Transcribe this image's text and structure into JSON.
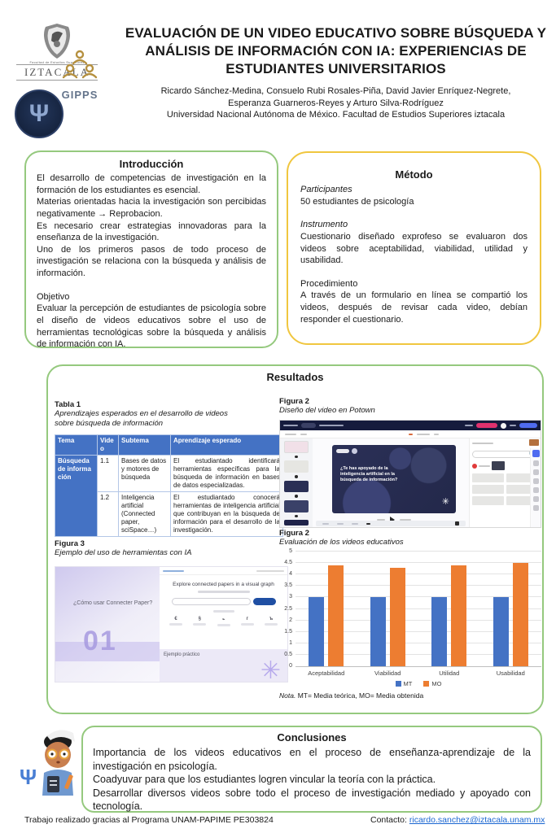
{
  "poster": {
    "title": "EVALUACIÓN DE UN VIDEO EDUCATIVO SOBRE BÚSQUEDA Y ANÁLISIS DE INFORMACIÓN CON IA: EXPERIENCIAS DE ESTUDIANTES UNIVERSITARIOS",
    "authors_line1": "Ricardo Sánchez-Medina, Consuelo Rubi Rosales-Piña, David Javier Enríquez-Negrete,",
    "authors_line2": "Esperanza Guarneros-Reyes y Arturo Silva-Rodríguez",
    "affiliation": "Universidad Nacional Autónoma de México. Facultad de Estudios Superiores iztacala",
    "logos": {
      "iztacala_sub": "Facultad de Estudios Superiores",
      "iztacala_name": "IZTACALA",
      "gipps_name": "GIPPS",
      "psi_symbol": "Ψ"
    }
  },
  "introduccion": {
    "title": "Introducción",
    "p1": "El desarrollo de competencias de investigación en la formación de los estudiantes es esencial.",
    "p2": "Materias orientadas hacia la investigación son percibidas negativamente → Reprobacion.",
    "p3": "Es necesario crear estrategias innovadoras para la enseñanza de la investigación.",
    "p4": "Uno de los primeros pasos de todo proceso de investigación se relaciona con la búsqueda y análisis de información.",
    "objetivo_label": "Objetivo",
    "objetivo_text": "Evaluar la percepción de estudiantes de psicología sobre el diseño de videos educativos sobre el uso de herramientas tecnológicas sobre la búsqueda y análisis de información con IA."
  },
  "metodo": {
    "title": "Método",
    "participantes_label": "Participantes",
    "participantes_text": "50 estudiantes de psicología",
    "instrumento_label": "Instrumento",
    "instrumento_text": "Cuestionario diseñado exprofeso se evaluaron dos videos sobre aceptabilidad, viabilidad, utilidad y usabilidad.",
    "procedimiento_label": "Procedimiento",
    "procedimiento_text": "A través de un formulario en línea se compartió los videos, después de revisar cada video, debían responder el cuestionario."
  },
  "resultados": {
    "title": "Resultados",
    "tabla1": {
      "label": "Tabla 1",
      "caption": "Aprendizajes esperados en el desarrollo de videos sobre búsqueda de información",
      "headers": [
        "Tema",
        "Video",
        "Subtema",
        "Aprendizaje esperado"
      ],
      "rows": [
        {
          "tema": "Búsqueda de información",
          "video": "1.1",
          "subtema": "Bases de datos y motores de búsqueda",
          "aprendizaje": "El estudiantado identificará herramientas específicas para la búsqueda de información en bases de datos especializadas."
        },
        {
          "tema": "",
          "video": "1.2",
          "subtema": "Inteligencia artificial (Connected paper, sciSpace…)",
          "aprendizaje": "El estudiantado conocerá herramientas de inteligencia artificial que contribuyan en la búsqueda de información para el desarrollo de la investigación."
        }
      ]
    },
    "figura2_video": {
      "label": "Figura 2",
      "caption": "Diseño del video en Potown",
      "slide_text": "¿Te has apoyado de la inteligencia artificial en la búsqueda de información?"
    },
    "figura3": {
      "label": "Figura 3",
      "caption": "Ejemplo del uso de herramientas con IA",
      "slide_title": "¿Cómo usar Connecter Paper?",
      "slide_number": "01",
      "page_title": "Explore connected papers in a visual graph",
      "example_label": "Ejemplo práctico",
      "asterisk": "✳"
    },
    "figura2_chart": {
      "label": "Figura 2",
      "caption": "Evaluación de los videos educativos",
      "nota_label": "Nota.",
      "nota_text": " MT= Media teórica, MO= Media obtenida"
    }
  },
  "chart_data": {
    "type": "bar",
    "title": "Evaluación de los videos educativos",
    "categories": [
      "Aceptabilidad",
      "Viabilidad",
      "Utilidad",
      "Usabilidad"
    ],
    "series": [
      {
        "name": "MT",
        "color": "#4472c4",
        "values": [
          3,
          3,
          3,
          3
        ]
      },
      {
        "name": "MO",
        "color": "#ed7d31",
        "values": [
          4.4,
          4.3,
          4.4,
          4.5
        ]
      }
    ],
    "xlabel": "",
    "ylabel": "",
    "ylim": [
      0,
      5
    ],
    "ytick_step": 0.5,
    "grid": true,
    "legend_position": "bottom"
  },
  "conclusiones": {
    "title": "Conclusiones",
    "p1": "Importancia de los videos educativos en el proceso de enseñanza-aprendizaje de la investigación en psicología.",
    "p2": "Coadyuvar para que los estudiantes logren vincular la teoría con la práctica.",
    "p3": "Desarrollar diversos videos sobre todo el proceso de investigación mediado y apoyado con tecnología."
  },
  "footer": {
    "acknowledgment": "Trabajo realizado gracias al Programa UNAM-PAPIME PE303824",
    "contact_label": "Contacto: ",
    "contact_email": "ricardo.sanchez@iztacala.unam.mx"
  },
  "colors": {
    "green_border": "#95c97e",
    "yellow_border": "#f0c63f",
    "table_header_blue": "#4472c4",
    "bar_blue": "#4472c4",
    "bar_orange": "#ed7d31",
    "link_blue": "#1a66d1"
  }
}
